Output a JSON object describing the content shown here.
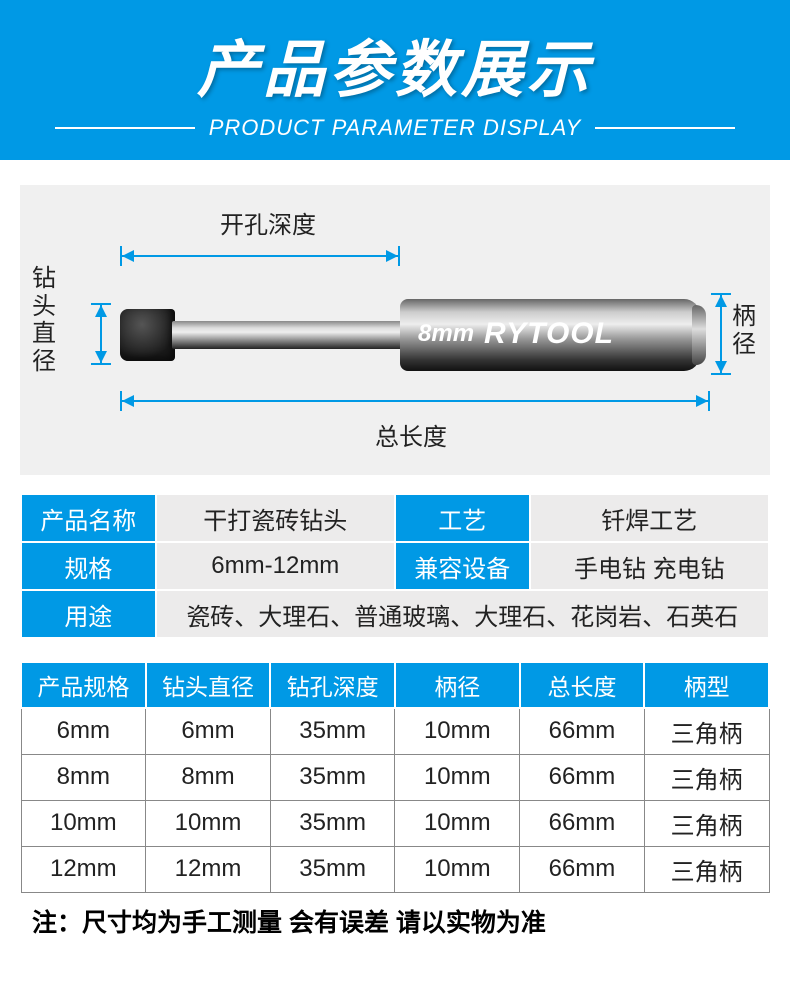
{
  "header": {
    "title": "产品参数展示",
    "subtitle": "PRODUCT PARAMETER DISPLAY",
    "bg_color": "#0099e5",
    "text_color": "#ffffff"
  },
  "diagram": {
    "labels": {
      "depth": "开孔深度",
      "bit_dia": "钻头直径",
      "shank_dia": "柄径",
      "total_len": "总长度"
    },
    "product_mark": "8mm",
    "brand": "RYTOOL",
    "bg_color": "#f0f0f0",
    "line_color": "#0099e5"
  },
  "spec_table": {
    "rows": [
      {
        "h1": "产品名称",
        "v1": "干打瓷砖钻头",
        "h2": "工艺",
        "v2": "钎焊工艺"
      },
      {
        "h1": "规格",
        "v1": "6mm-12mm",
        "h2": "兼容设备",
        "v2": "手电钻 充电钻"
      }
    ],
    "use_row": {
      "h": "用途",
      "v": "瓷砖、大理石、普通玻璃、大理石、花岗岩、石英石"
    },
    "header_bg": "#0099e5",
    "value_bg": "#ecebeb"
  },
  "size_table": {
    "headers": [
      "产品规格",
      "钻头直径",
      "钻孔深度",
      "柄径",
      "总长度",
      "柄型"
    ],
    "rows": [
      [
        "6mm",
        "6mm",
        "35mm",
        "10mm",
        "66mm",
        "三角柄"
      ],
      [
        "8mm",
        "8mm",
        "35mm",
        "10mm",
        "66mm",
        "三角柄"
      ],
      [
        "10mm",
        "10mm",
        "35mm",
        "10mm",
        "66mm",
        "三角柄"
      ],
      [
        "12mm",
        "12mm",
        "35mm",
        "10mm",
        "66mm",
        "三角柄"
      ]
    ],
    "header_bg": "#0099e5",
    "border_color": "#888888"
  },
  "footnote": "注：尺寸均为手工测量 会有误差 请以实物为准"
}
